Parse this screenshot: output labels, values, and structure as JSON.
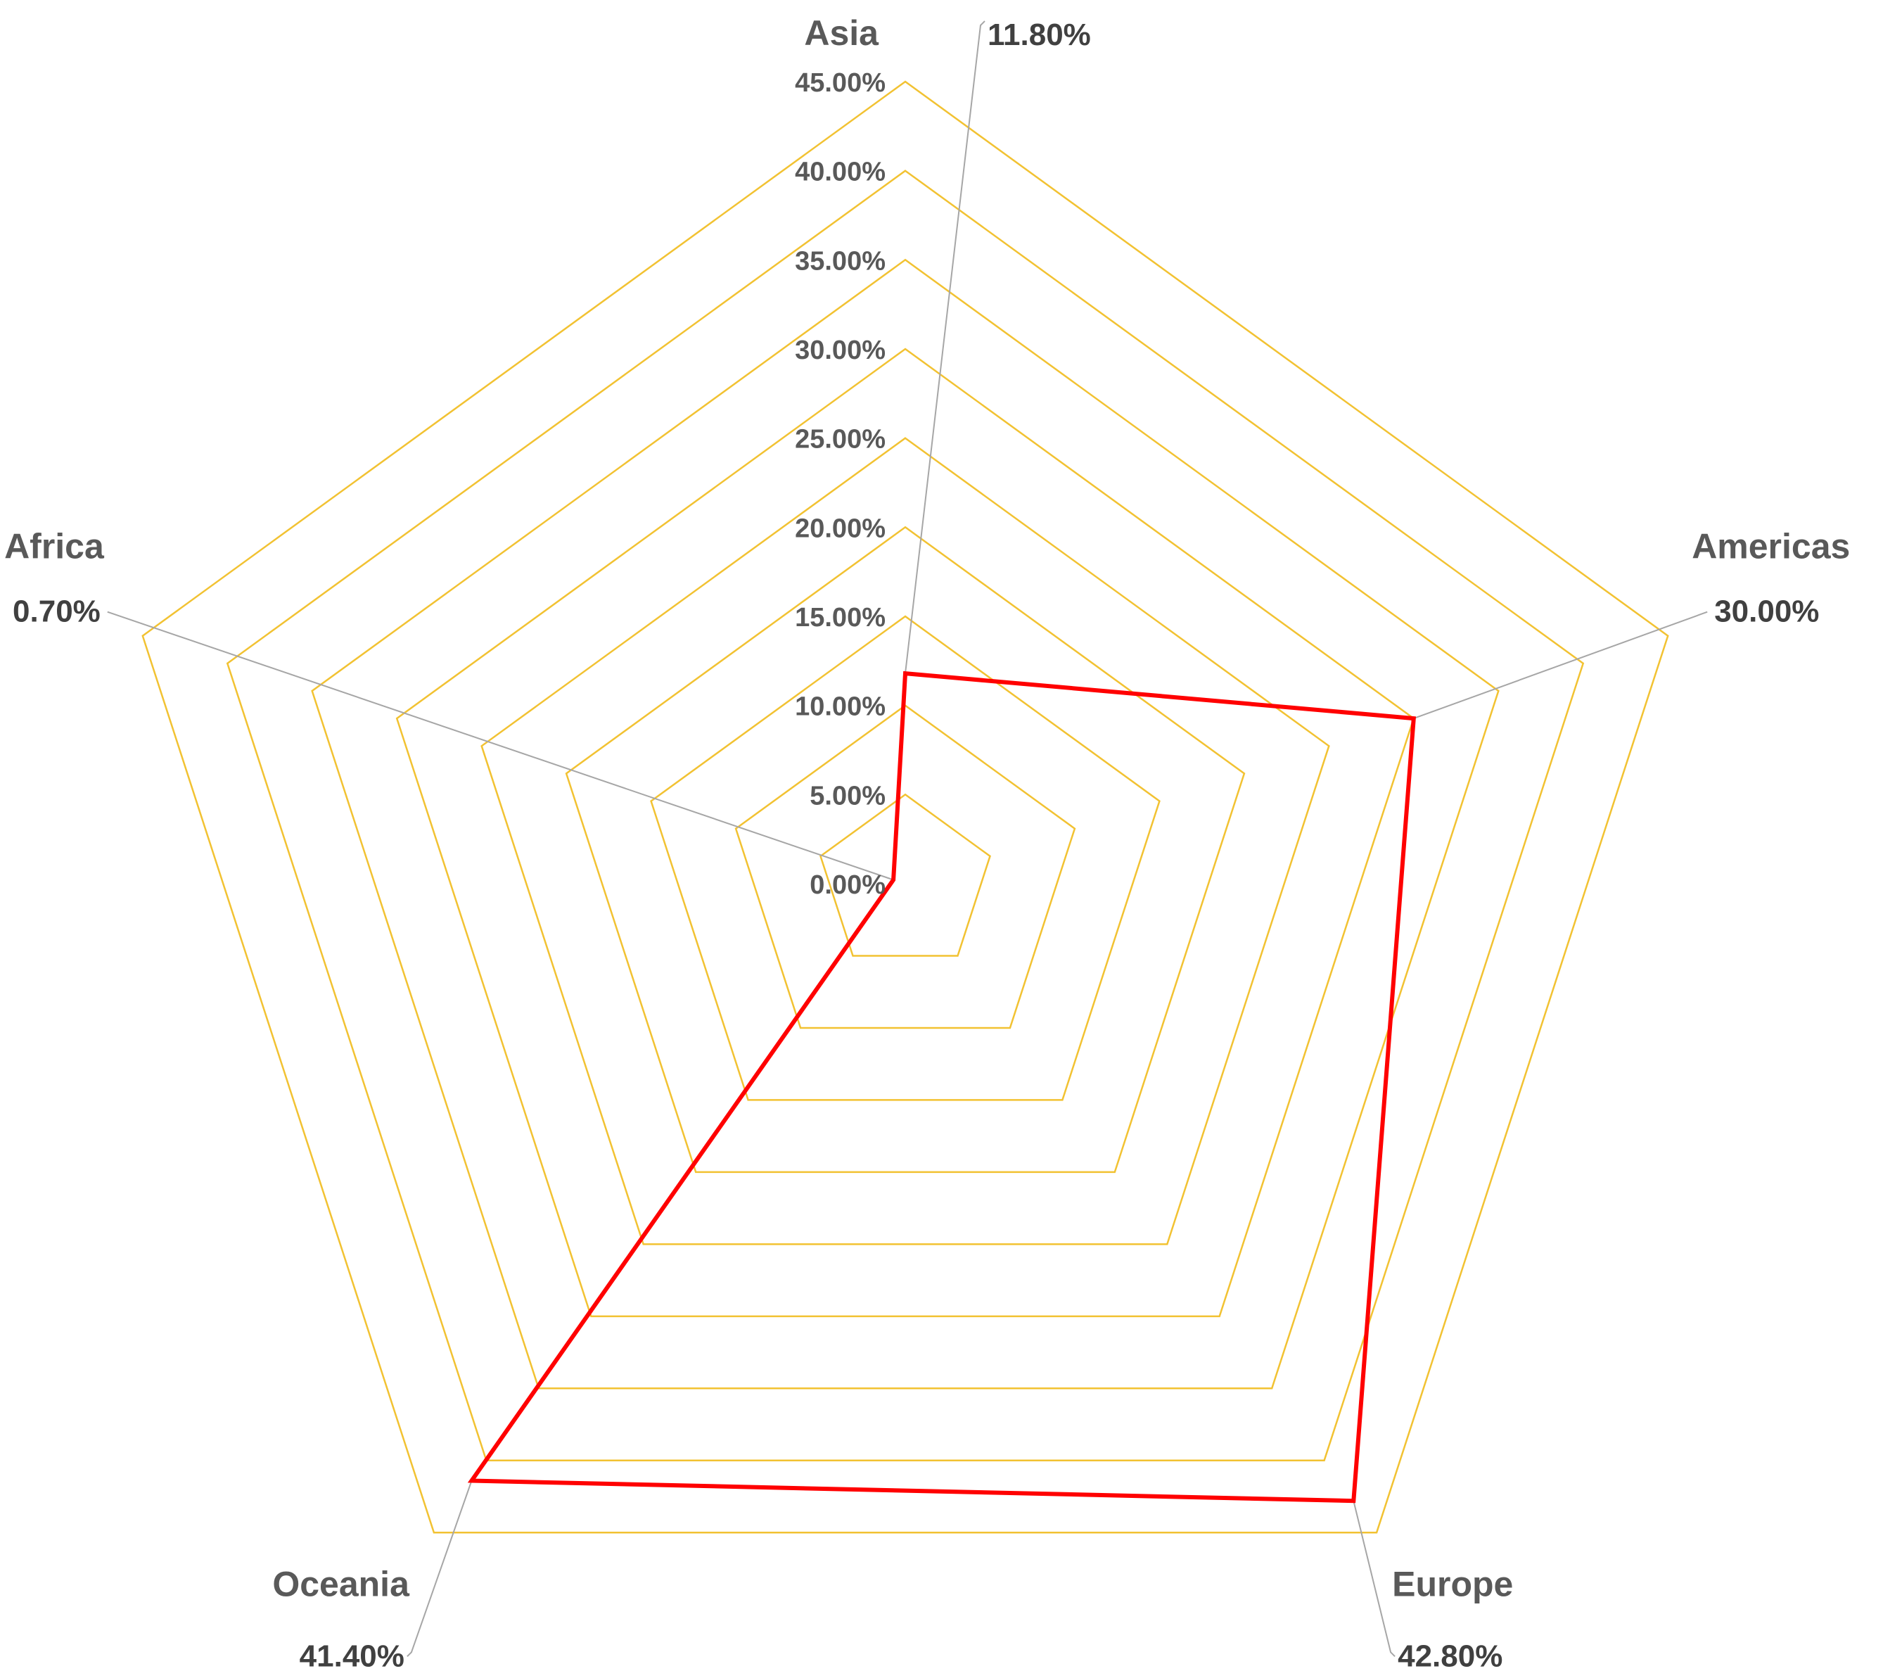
{
  "chart_data": {
    "type": "radar",
    "categories": [
      "Asia",
      "Americas",
      "Europe",
      "Oceania",
      "Africa"
    ],
    "values": [
      11.8,
      30.0,
      42.8,
      41.4,
      0.7
    ],
    "value_labels": [
      "11.80%",
      "30.00%",
      "42.80%",
      "41.40%",
      "0.70%"
    ],
    "rlim": [
      0,
      45
    ],
    "ticks": [
      0,
      5,
      10,
      15,
      20,
      25,
      30,
      35,
      40,
      45
    ],
    "tick_labels": [
      "0.00%",
      "5.00%",
      "10.00%",
      "15.00%",
      "20.00%",
      "25.00%",
      "30.00%",
      "35.00%",
      "40.00%",
      "45.00%"
    ],
    "title": "",
    "legend": "none",
    "colors": {
      "grid": "#f2c232",
      "series": "#ff0000",
      "leader": "#a6a6a6",
      "text": "#595959"
    }
  }
}
